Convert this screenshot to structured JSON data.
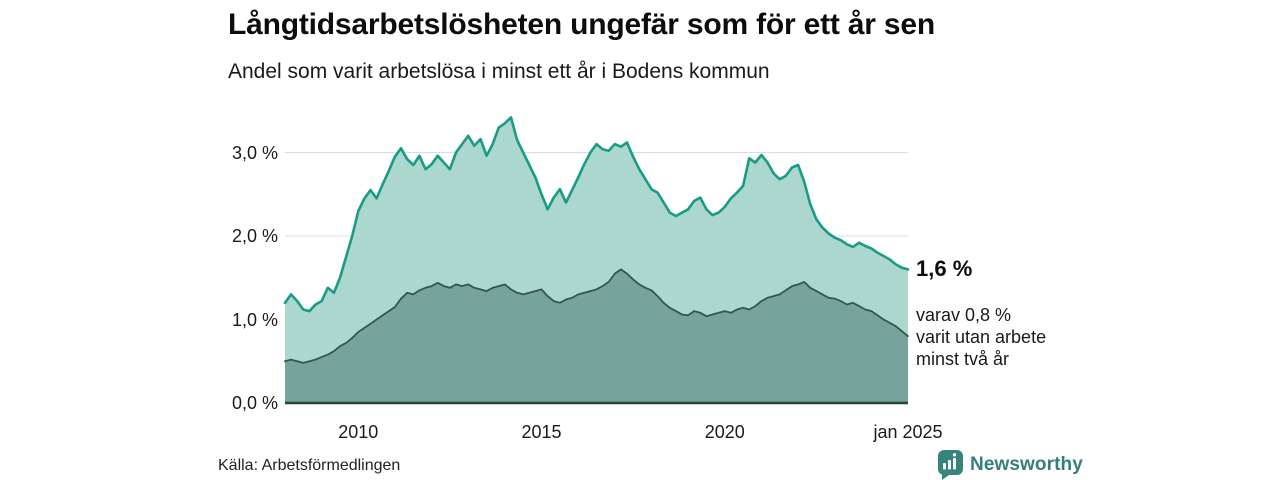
{
  "page": {
    "background": "#ffffff"
  },
  "header": {
    "title": "Långtidsarbetslösheten ungefär som för ett år sen",
    "subtitle": "Andel som varit arbetslösa i minst ett år i Bodens kommun"
  },
  "chart_data": {
    "type": "area",
    "title": "Långtidsarbetslösheten ungefär som för ett år sen",
    "subtitle": "Andel som varit arbetslösa i minst ett år i Bodens kommun",
    "x_start_year": 2008,
    "x_step_months": 2,
    "xlim": [
      2008,
      2025
    ],
    "ylim": [
      0,
      3.55
    ],
    "grid": true,
    "y_ticks": [
      {
        "value": 0,
        "label": "0,0 %"
      },
      {
        "value": 1,
        "label": "1,0 %"
      },
      {
        "value": 2,
        "label": "2,0 %"
      },
      {
        "value": 3,
        "label": "3,0 %"
      }
    ],
    "x_ticks": [
      {
        "value": 2010,
        "label": "2010"
      },
      {
        "value": 2015,
        "label": "2015"
      },
      {
        "value": 2020,
        "label": "2020"
      },
      {
        "value": 2025,
        "label": "jan 2025"
      }
    ],
    "series": [
      {
        "name": "Andel som varit arbetslösa i minst ett år",
        "color_line": "#1a9b86",
        "color_fill": "#abd7cf",
        "line_width": 2.6,
        "values": [
          1.2,
          1.3,
          1.22,
          1.12,
          1.1,
          1.18,
          1.22,
          1.38,
          1.32,
          1.5,
          1.75,
          2.0,
          2.3,
          2.45,
          2.55,
          2.45,
          2.62,
          2.78,
          2.95,
          3.05,
          2.92,
          2.85,
          2.96,
          2.8,
          2.86,
          2.96,
          2.88,
          2.8,
          3.0,
          3.1,
          3.2,
          3.08,
          3.16,
          2.96,
          3.1,
          3.3,
          3.35,
          3.42,
          3.15,
          3.0,
          2.85,
          2.7,
          2.5,
          2.32,
          2.46,
          2.56,
          2.4,
          2.55,
          2.7,
          2.86,
          3.0,
          3.1,
          3.04,
          3.02,
          3.1,
          3.07,
          3.12,
          2.95,
          2.8,
          2.68,
          2.56,
          2.52,
          2.4,
          2.28,
          2.24,
          2.28,
          2.32,
          2.42,
          2.46,
          2.32,
          2.25,
          2.28,
          2.35,
          2.45,
          2.52,
          2.6,
          2.93,
          2.88,
          2.97,
          2.88,
          2.75,
          2.68,
          2.72,
          2.82,
          2.85,
          2.65,
          2.38,
          2.2,
          2.1,
          2.03,
          1.98,
          1.95,
          1.9,
          1.87,
          1.92,
          1.88,
          1.85,
          1.8,
          1.76,
          1.72,
          1.66,
          1.62,
          1.6
        ]
      },
      {
        "name": "varav varit utan arbete minst två år",
        "color_line": "#35564f",
        "color_fill": "#76a39b",
        "line_width": 1.8,
        "values": [
          0.5,
          0.52,
          0.5,
          0.48,
          0.5,
          0.52,
          0.55,
          0.58,
          0.62,
          0.68,
          0.72,
          0.78,
          0.85,
          0.9,
          0.95,
          1.0,
          1.05,
          1.1,
          1.15,
          1.25,
          1.32,
          1.3,
          1.35,
          1.38,
          1.4,
          1.44,
          1.4,
          1.38,
          1.42,
          1.4,
          1.42,
          1.38,
          1.36,
          1.34,
          1.38,
          1.4,
          1.42,
          1.36,
          1.32,
          1.3,
          1.32,
          1.34,
          1.36,
          1.28,
          1.22,
          1.2,
          1.24,
          1.26,
          1.3,
          1.32,
          1.34,
          1.36,
          1.4,
          1.45,
          1.55,
          1.6,
          1.55,
          1.48,
          1.42,
          1.38,
          1.35,
          1.28,
          1.2,
          1.14,
          1.1,
          1.06,
          1.05,
          1.1,
          1.08,
          1.04,
          1.06,
          1.08,
          1.1,
          1.08,
          1.12,
          1.14,
          1.12,
          1.16,
          1.22,
          1.26,
          1.28,
          1.3,
          1.35,
          1.4,
          1.42,
          1.45,
          1.38,
          1.34,
          1.3,
          1.26,
          1.25,
          1.22,
          1.18,
          1.2,
          1.16,
          1.12,
          1.1,
          1.05,
          1.0,
          0.96,
          0.92,
          0.86,
          0.8
        ]
      }
    ],
    "annotations": {
      "end_value_label": "1,6 %",
      "sub_label_lines": [
        "varav 0,8 %",
        "varit utan arbete",
        "minst två år"
      ]
    },
    "colors": {
      "gridline": "#dcdcdc",
      "axis": "#25433d"
    }
  },
  "footer": {
    "source": "Källa: Arbetsförmedlingen",
    "brand": "Newsworthy",
    "brand_color": "#35807a"
  },
  "icons": {
    "logo": "newsworthy-chart-bubble-icon"
  }
}
